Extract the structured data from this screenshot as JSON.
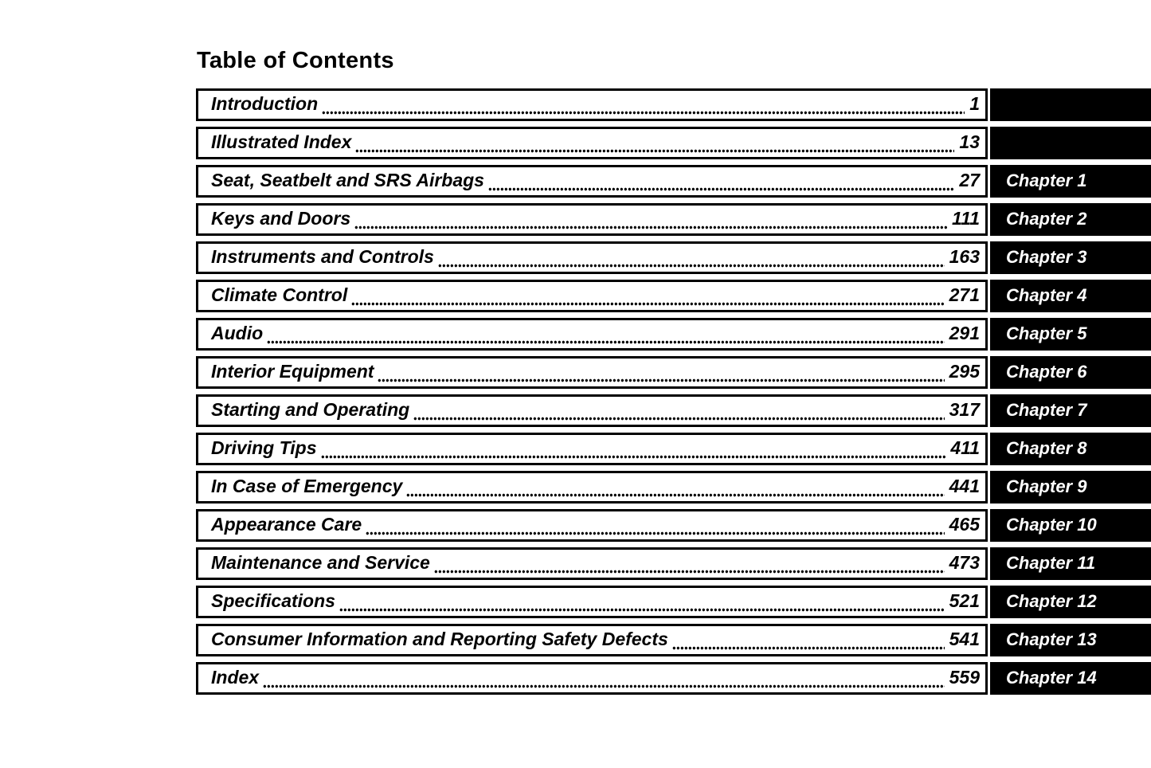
{
  "page_title": "Table of Contents",
  "colors": {
    "text": "#000000",
    "page_background": "#ffffff",
    "tab_background": "#000000",
    "tab_text": "#ffffff",
    "box_border": "#000000"
  },
  "toc": {
    "entries": [
      {
        "title": "Introduction",
        "page": "1",
        "chapter": ""
      },
      {
        "title": "Illustrated Index",
        "page": "13",
        "chapter": ""
      },
      {
        "title": "Seat, Seatbelt and SRS Airbags",
        "page": "27",
        "chapter": "Chapter 1"
      },
      {
        "title": "Keys and Doors",
        "page": "111",
        "chapter": "Chapter 2"
      },
      {
        "title": "Instruments and Controls",
        "page": "163",
        "chapter": "Chapter 3"
      },
      {
        "title": "Climate Control",
        "page": "271",
        "chapter": "Chapter 4"
      },
      {
        "title": "Audio",
        "page": "291",
        "chapter": "Chapter 5"
      },
      {
        "title": "Interior Equipment",
        "page": "295",
        "chapter": "Chapter 6"
      },
      {
        "title": "Starting and Operating",
        "page": "317",
        "chapter": "Chapter 7"
      },
      {
        "title": "Driving Tips",
        "page": "411",
        "chapter": "Chapter 8"
      },
      {
        "title": "In Case of Emergency",
        "page": "441",
        "chapter": "Chapter 9"
      },
      {
        "title": "Appearance Care",
        "page": "465",
        "chapter": "Chapter 10"
      },
      {
        "title": "Maintenance and Service",
        "page": "473",
        "chapter": "Chapter 11"
      },
      {
        "title": "Specifications",
        "page": "521",
        "chapter": "Chapter 12"
      },
      {
        "title": "Consumer Information and Reporting Safety Defects",
        "page": "541",
        "chapter": "Chapter 13"
      },
      {
        "title": "Index",
        "page": "559",
        "chapter": "Chapter 14"
      }
    ]
  }
}
